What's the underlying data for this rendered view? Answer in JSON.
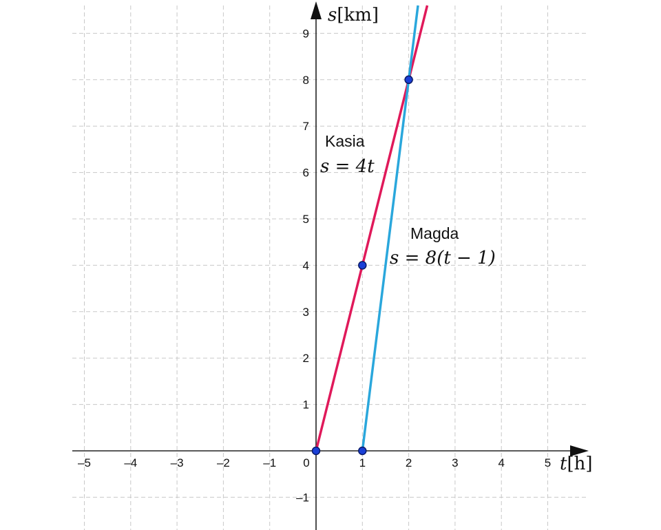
{
  "chart_data": {
    "type": "line",
    "xlim": [
      -5.5,
      5.9
    ],
    "ylim": [
      -1.7,
      9.6
    ],
    "grid": true,
    "x_ticks": [
      -5,
      -4,
      -3,
      -2,
      -1,
      0,
      1,
      2,
      3,
      4,
      5
    ],
    "y_ticks": [
      -1,
      1,
      2,
      3,
      4,
      5,
      6,
      7,
      8,
      9
    ],
    "x_tick_labels": [
      "–5",
      "–4",
      "–3",
      "–2",
      "–1",
      "0",
      "1",
      "2",
      "3",
      "4",
      "5"
    ],
    "y_tick_labels": [
      "–1",
      "1",
      "2",
      "3",
      "4",
      "5",
      "6",
      "7",
      "8",
      "9"
    ],
    "xlabel": {
      "var": "t",
      "unit": "[h]"
    },
    "ylabel": {
      "var": "s",
      "unit": "[km]"
    },
    "series": [
      {
        "name": "Kasia",
        "formula": "s = 4t",
        "color": "#e0195a",
        "function": {
          "slope": 4,
          "intercept": 0
        },
        "x_range": [
          0,
          2.4
        ]
      },
      {
        "name": "Magda",
        "formula": "s = 8(t − 1)",
        "color": "#2aa7dc",
        "function": {
          "slope": 8,
          "intercept": -8
        },
        "x_range": [
          1,
          2.2
        ]
      }
    ],
    "points": [
      {
        "x": 0,
        "y": 0
      },
      {
        "x": 1,
        "y": 0
      },
      {
        "x": 1,
        "y": 4
      },
      {
        "x": 2,
        "y": 8
      }
    ],
    "point_color": "#1a3fd6"
  }
}
